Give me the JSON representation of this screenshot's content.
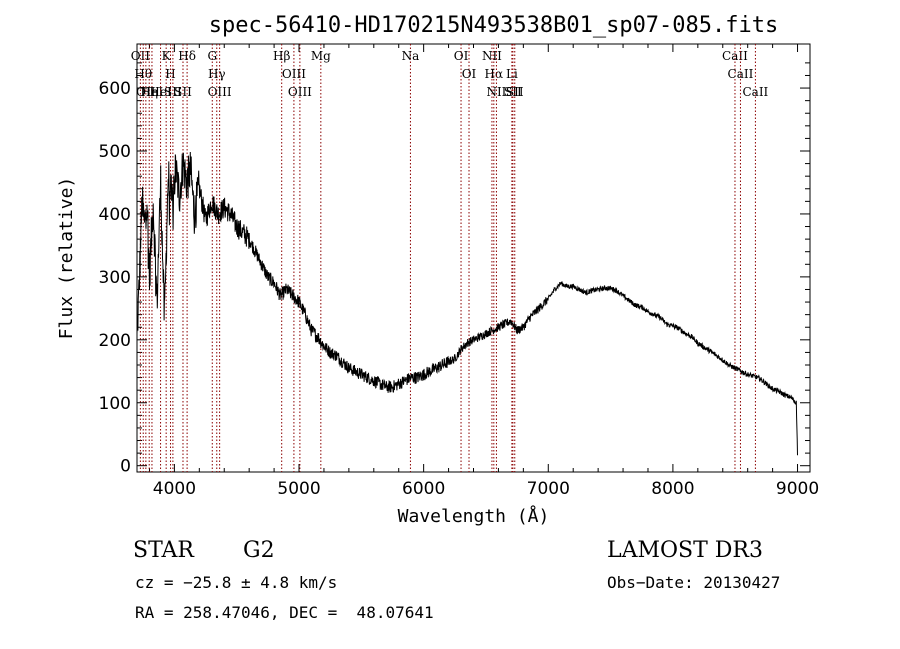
{
  "chart_data": {
    "type": "line",
    "title": "spec-56410-HD170215N493538B01_sp07-085.fits",
    "xlabel": "Wavelength (Å)",
    "ylabel": "Flux (relative)",
    "xlim": [
      3700,
      9100
    ],
    "ylim": [
      -10,
      670
    ],
    "x_ticks": [
      4000,
      5000,
      6000,
      7000,
      8000,
      9000
    ],
    "y_ticks": [
      0,
      100,
      200,
      300,
      400,
      500,
      600
    ],
    "series": [
      {
        "x": [
          3700,
          3720,
          3740,
          3760,
          3780,
          3800,
          3830,
          3860,
          3890,
          3920,
          3950,
          3980,
          4010,
          4040,
          4070,
          4100,
          4130,
          4160,
          4200,
          4250,
          4300,
          4350,
          4400,
          4450,
          4500,
          4550,
          4600,
          4650,
          4700,
          4750,
          4800,
          4850,
          4900,
          4950,
          5000,
          5050,
          5100,
          5150,
          5200,
          5250,
          5300,
          5350,
          5400,
          5450,
          5500,
          5550,
          5600,
          5650,
          5700,
          5750,
          5800,
          5850,
          5900,
          5950,
          6000,
          6050,
          6100,
          6150,
          6200,
          6250,
          6300,
          6350,
          6400,
          6450,
          6500,
          6550,
          6600,
          6650,
          6700,
          6750,
          6800,
          6850,
          6900,
          6950,
          7000,
          7050,
          7100,
          7150,
          7200,
          7250,
          7300,
          7350,
          7400,
          7450,
          7500,
          7550,
          7600,
          7650,
          7700,
          7750,
          7800,
          7850,
          7900,
          7950,
          8000,
          8050,
          8100,
          8150,
          8200,
          8250,
          8300,
          8350,
          8400,
          8450,
          8500,
          8550,
          8600,
          8650,
          8700,
          8750,
          8800,
          8850,
          8900,
          8950,
          8990,
          9000
        ],
        "y": [
          200,
          300,
          420,
          380,
          430,
          300,
          420,
          260,
          450,
          230,
          460,
          420,
          470,
          430,
          480,
          450,
          470,
          400,
          440,
          390,
          420,
          400,
          410,
          400,
          380,
          370,
          360,
          340,
          320,
          300,
          290,
          270,
          280,
          270,
          260,
          240,
          215,
          205,
          190,
          180,
          175,
          165,
          155,
          150,
          145,
          140,
          135,
          130,
          125,
          125,
          130,
          135,
          140,
          140,
          145,
          150,
          155,
          160,
          165,
          170,
          185,
          195,
          200,
          205,
          210,
          215,
          220,
          225,
          230,
          215,
          220,
          235,
          245,
          255,
          265,
          280,
          290,
          285,
          285,
          280,
          275,
          278,
          280,
          282,
          282,
          278,
          270,
          262,
          255,
          252,
          245,
          240,
          235,
          225,
          222,
          218,
          210,
          205,
          195,
          188,
          182,
          175,
          168,
          160,
          155,
          150,
          145,
          142,
          138,
          130,
          122,
          118,
          112,
          108,
          100,
          20
        ]
      }
    ],
    "lines": [
      {
        "x": 3727,
        "labels": [
          "OII"
        ]
      },
      {
        "x": 3750,
        "labels": [
          "Hθ"
        ]
      },
      {
        "x": 3771,
        "labels": [
          "OII"
        ]
      },
      {
        "x": 3798,
        "labels": [
          "Hη"
        ]
      },
      {
        "x": 3820,
        "labels": [
          "HeI"
        ]
      },
      {
        "x": 3889,
        "labels": [
          "HeI"
        ]
      },
      {
        "x": 3934,
        "labels": [
          "K"
        ]
      },
      {
        "x": 3969,
        "labels": [
          "H"
        ]
      },
      {
        "x": 3988,
        "labels": [
          "SII"
        ]
      },
      {
        "x": 4069,
        "labels": [
          "SII"
        ]
      },
      {
        "x": 4102,
        "labels": [
          "Hδ"
        ]
      },
      {
        "x": 4304,
        "labels": [
          "G"
        ]
      },
      {
        "x": 4340,
        "labels": [
          "Hγ"
        ]
      },
      {
        "x": 4363,
        "labels": [
          "OIII"
        ]
      },
      {
        "x": 4861,
        "labels": [
          "Hβ"
        ]
      },
      {
        "x": 4959,
        "labels": [
          "OIII"
        ]
      },
      {
        "x": 5007,
        "labels": [
          "OIII"
        ]
      },
      {
        "x": 5175,
        "labels": [
          "Mg"
        ]
      },
      {
        "x": 5894,
        "labels": [
          "Na"
        ]
      },
      {
        "x": 6300,
        "labels": [
          "OI"
        ]
      },
      {
        "x": 6364,
        "labels": [
          "OI"
        ]
      },
      {
        "x": 6548,
        "labels": [
          "NII"
        ]
      },
      {
        "x": 6563,
        "labels": [
          "Hα"
        ]
      },
      {
        "x": 6584,
        "labels": [
          "NII"
        ]
      },
      {
        "x": 6708,
        "labels": [
          "Li"
        ]
      },
      {
        "x": 6716,
        "labels": [
          "SII"
        ]
      },
      {
        "x": 6731,
        "labels": [
          "SII"
        ]
      },
      {
        "x": 8498,
        "labels": [
          "CaII"
        ]
      },
      {
        "x": 8542,
        "labels": [
          "CaII"
        ]
      },
      {
        "x": 8662,
        "labels": [
          "CaII"
        ]
      }
    ],
    "line_color": "#8b0000"
  },
  "footer": {
    "object_type": "STAR",
    "subclass": "G2",
    "survey": "LAMOST DR3",
    "cz": "cz = −25.8 ± 4.8 km/s",
    "obs_date": "Obs−Date: 20130427",
    "coords": "RA = 258.47046, DEC =  48.07641"
  }
}
